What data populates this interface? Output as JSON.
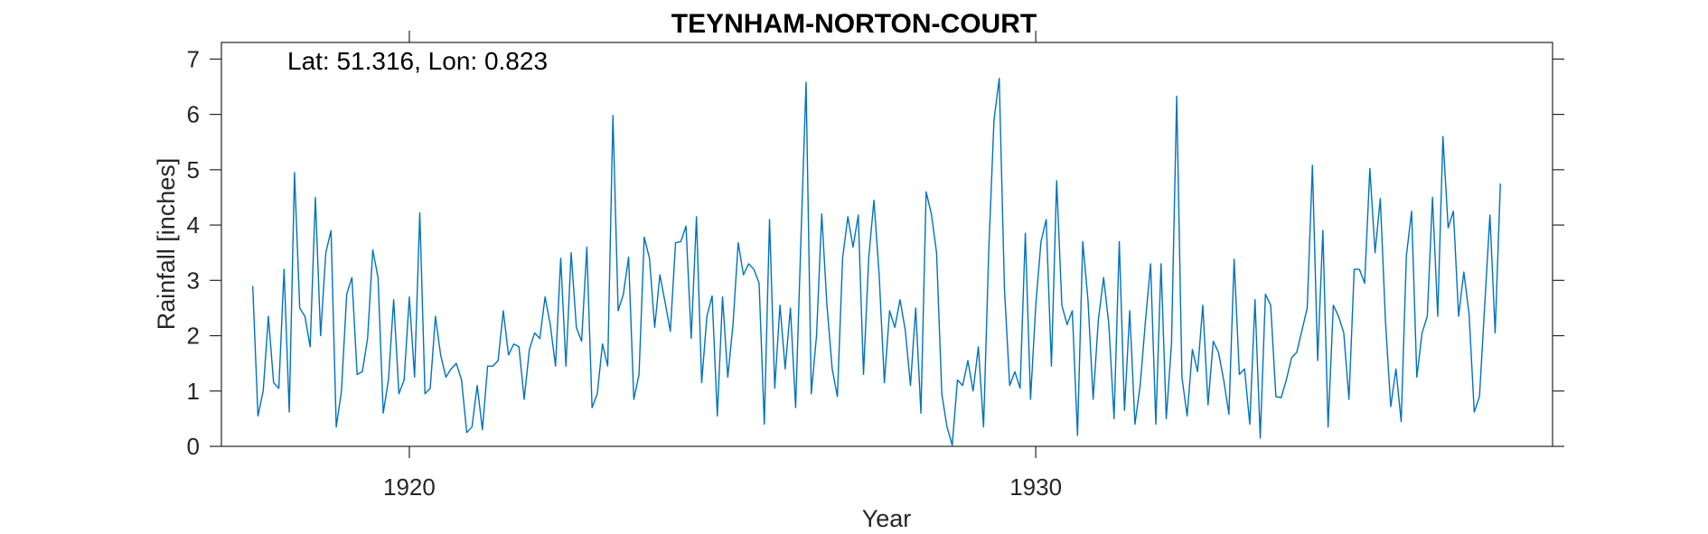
{
  "chart_data": {
    "type": "line",
    "title": "TEYNHAM-NORTON-COURT",
    "annotation": "Lat: 51.316, Lon: 0.823",
    "xlabel": "Year",
    "ylabel": "Rainfall [inches]",
    "xlim": [
      1917.0,
      1938.25
    ],
    "ylim": [
      0,
      7.3
    ],
    "xticks": [
      1920,
      1930
    ],
    "yticks": [
      0,
      1,
      2,
      3,
      4,
      5,
      6,
      7
    ],
    "grid": false,
    "line_color": "#0072bd",
    "series": [
      {
        "x_start": 1917.5,
        "x_step_months": 1,
        "values": [
          2.9,
          0.55,
          1.0,
          2.35,
          1.15,
          1.05,
          3.2,
          0.62,
          4.95,
          2.5,
          2.35,
          1.8,
          4.5,
          2.0,
          3.5,
          3.9,
          0.35,
          1.0,
          2.75,
          3.05,
          1.3,
          1.35,
          1.95,
          3.55,
          3.05,
          0.6,
          1.2,
          2.65,
          0.95,
          1.2,
          2.7,
          1.25,
          4.22,
          0.95,
          1.05,
          2.35,
          1.65,
          1.25,
          1.4,
          1.5,
          1.2,
          0.25,
          0.35,
          1.1,
          0.3,
          1.45,
          1.45,
          1.55,
          2.45,
          1.65,
          1.85,
          1.8,
          0.85,
          1.75,
          2.05,
          1.95,
          2.7,
          2.2,
          1.45,
          3.4,
          1.45,
          3.5,
          2.15,
          1.9,
          3.6,
          0.7,
          0.95,
          1.85,
          1.45,
          5.98,
          2.45,
          2.75,
          3.42,
          0.85,
          1.3,
          3.78,
          3.4,
          2.15,
          3.1,
          2.6,
          2.08,
          3.68,
          3.7,
          3.98,
          1.95,
          4.15,
          1.15,
          2.35,
          2.72,
          0.55,
          2.7,
          1.25,
          2.2,
          3.68,
          3.1,
          3.3,
          3.2,
          2.95,
          0.4,
          4.1,
          1.05,
          2.55,
          1.4,
          2.5,
          0.7,
          3.7,
          6.58,
          0.95,
          2.0,
          4.2,
          2.55,
          1.4,
          0.9,
          3.4,
          4.15,
          3.6,
          4.18,
          1.3,
          3.4,
          4.45,
          3.1,
          1.15,
          2.45,
          2.15,
          2.65,
          2.1,
          1.1,
          2.5,
          0.6,
          4.6,
          4.2,
          3.5,
          0.95,
          0.35,
          0.02,
          1.2,
          1.1,
          1.55,
          1.0,
          1.8,
          0.35,
          3.55,
          5.9,
          6.65,
          2.85,
          1.1,
          1.35,
          1.05,
          3.85,
          0.85,
          2.55,
          3.7,
          4.1,
          1.45,
          4.8,
          2.55,
          2.2,
          2.45,
          0.2,
          3.7,
          2.65,
          0.85,
          2.3,
          3.05,
          2.2,
          0.5,
          3.7,
          0.65,
          2.45,
          0.4,
          1.1,
          2.25,
          3.3,
          0.4,
          3.3,
          0.5,
          1.85,
          6.33,
          1.25,
          0.55,
          1.75,
          1.35,
          2.55,
          0.75,
          1.9,
          1.7,
          1.2,
          0.58,
          3.38,
          1.3,
          1.4,
          0.4,
          2.65,
          0.15,
          2.75,
          2.55,
          0.9,
          0.88,
          1.2,
          1.6,
          1.7,
          2.1,
          2.5,
          5.08,
          1.55,
          3.9,
          0.35,
          2.55,
          2.35,
          2.05,
          0.85,
          3.2,
          3.2,
          2.95,
          5.02,
          3.5,
          4.48,
          2.25,
          0.72,
          1.4,
          0.45,
          3.45,
          4.25,
          1.25,
          2.05,
          2.35,
          4.5,
          2.35,
          5.6,
          3.95,
          4.25,
          2.35,
          3.15,
          2.4,
          0.62,
          0.9,
          2.55,
          4.18,
          2.05,
          4.75
        ]
      }
    ]
  }
}
